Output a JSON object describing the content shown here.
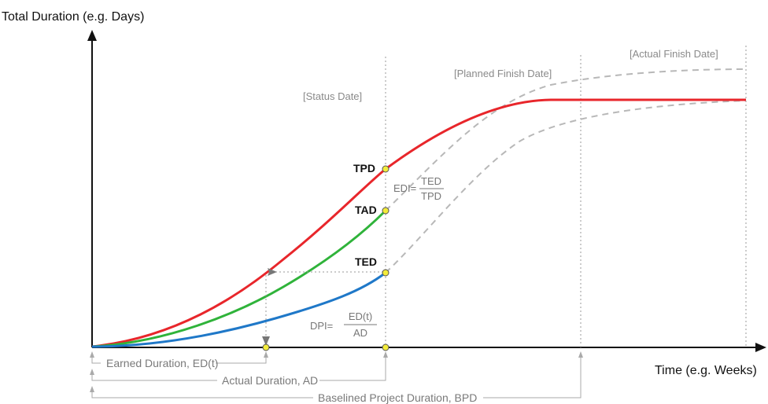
{
  "axes": {
    "y_title": "Total Duration (e.g. Days)",
    "x_title": "Time (e.g. Weeks)"
  },
  "dates": {
    "status": "[Status Date]",
    "planned_finish": "[Planned Finish Date]",
    "actual_finish": "[Actual Finish Date]"
  },
  "points": {
    "tpd": "TPD",
    "tad": "TAD",
    "ted": "TED"
  },
  "formulas": {
    "edi_prefix": "EDI=",
    "edi_num": "TED",
    "edi_den": "TPD",
    "dpi_prefix": "DPI=",
    "dpi_num": "ED(t)",
    "dpi_den": "AD"
  },
  "dimensions": {
    "earned": "Earned Duration, ED(t)",
    "actual": "Actual Duration, AD",
    "baselined": "Baselined Project Duration, BPD"
  },
  "colors": {
    "planned": "#e8262b",
    "actual": "#2fb33a",
    "earned": "#1f78c8",
    "forecast": "#b5b5b5",
    "marker": "#f3ec3a"
  }
}
